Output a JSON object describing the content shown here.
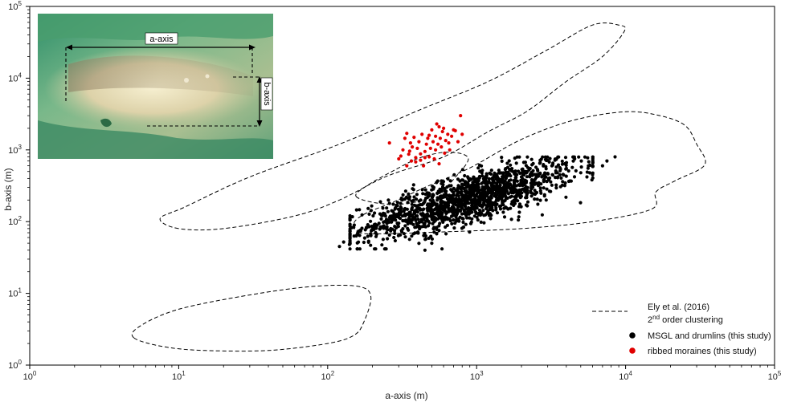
{
  "chart_data": {
    "type": "scatter",
    "xlabel": "a-axis (m)",
    "ylabel": "b-axis (m)",
    "xscale": "log",
    "yscale": "log",
    "xlim": [
      1,
      100000
    ],
    "ylim": [
      1,
      100000
    ],
    "grid": false,
    "legend_position": "bottom-right",
    "x_ticks": [
      {
        "base": "10",
        "exp": "0"
      },
      {
        "base": "10",
        "exp": "1"
      },
      {
        "base": "10",
        "exp": "2"
      },
      {
        "base": "10",
        "exp": "3"
      },
      {
        "base": "10",
        "exp": "4"
      },
      {
        "base": "10",
        "exp": "5"
      }
    ],
    "y_ticks": [
      {
        "base": "10",
        "exp": "0"
      },
      {
        "base": "10",
        "exp": "1"
      },
      {
        "base": "10",
        "exp": "2"
      },
      {
        "base": "10",
        "exp": "3"
      },
      {
        "base": "10",
        "exp": "4"
      },
      {
        "base": "10",
        "exp": "5"
      }
    ],
    "legend": [
      {
        "type": "dashed-line",
        "line1": "Ely et al. (2016)",
        "line2_pre": "2",
        "line2_sup": "nd",
        "line2_post": " order clustering"
      },
      {
        "type": "marker",
        "color": "#000000",
        "label": "MSGL and drumlins (this study)"
      },
      {
        "type": "marker",
        "color": "#e00000",
        "label": "ribbed moraines (this study)"
      }
    ],
    "envelopes": [
      {
        "name": "envelope-large",
        "points": [
          [
            10,
            80
          ],
          [
            7.5,
            110
          ],
          [
            11,
            160
          ],
          [
            30,
            420
          ],
          [
            120,
            1200
          ],
          [
            400,
            3500
          ],
          [
            1200,
            9000
          ],
          [
            3000,
            25000
          ],
          [
            6000,
            55000
          ],
          [
            9000,
            55000
          ],
          [
            9800,
            45000
          ],
          [
            7000,
            20000
          ],
          [
            4000,
            9000
          ],
          [
            2200,
            3500
          ],
          [
            1200,
            1800
          ],
          [
            600,
            800
          ],
          [
            250,
            430
          ],
          [
            120,
            200
          ],
          [
            60,
            120
          ],
          [
            20,
            80
          ]
        ]
      },
      {
        "name": "envelope-medium",
        "points": [
          [
            165,
            70
          ],
          [
            150,
            95
          ],
          [
            180,
            130
          ],
          [
            280,
            190
          ],
          [
            450,
            300
          ],
          [
            900,
            560
          ],
          [
            2000,
            1400
          ],
          [
            4500,
            2600
          ],
          [
            10000,
            3400
          ],
          [
            17000,
            3000
          ],
          [
            25000,
            2200
          ],
          [
            30000,
            1200
          ],
          [
            34000,
            620
          ],
          [
            22000,
            380
          ],
          [
            16000,
            260
          ],
          [
            15000,
            150
          ],
          [
            6000,
            100
          ],
          [
            2000,
            80
          ],
          [
            600,
            72
          ],
          [
            250,
            68
          ]
        ]
      },
      {
        "name": "envelope-small",
        "points": [
          [
            155,
            225
          ],
          [
            220,
            180
          ],
          [
            350,
            180
          ],
          [
            550,
            240
          ],
          [
            700,
            390
          ],
          [
            880,
            760
          ],
          [
            650,
            930
          ],
          [
            420,
            780
          ],
          [
            280,
            520
          ],
          [
            185,
            320
          ]
        ]
      },
      {
        "name": "envelope-tiny",
        "points": [
          [
            5,
            2.4
          ],
          [
            5.5,
            3.5
          ],
          [
            10,
            6
          ],
          [
            30,
            9.5
          ],
          [
            80,
            12.5
          ],
          [
            160,
            12.5
          ],
          [
            195,
            9
          ],
          [
            175,
            4
          ],
          [
            150,
            2.6
          ],
          [
            100,
            2
          ],
          [
            40,
            1.6
          ],
          [
            15,
            1.6
          ],
          [
            8,
            1.8
          ]
        ]
      }
    ],
    "series": [
      {
        "name": "MSGL and drumlins (this study)",
        "color": "#000000",
        "generated_count": 1500,
        "points_sample": [
          [
            120,
            45
          ],
          [
            128,
            52
          ],
          [
            140,
            48
          ],
          [
            190,
            85
          ],
          [
            210,
            70
          ],
          [
            260,
            65
          ],
          [
            300,
            95
          ],
          [
            350,
            110
          ],
          [
            400,
            150
          ],
          [
            500,
            170
          ],
          [
            600,
            220
          ],
          [
            700,
            250
          ],
          [
            800,
            300
          ],
          [
            900,
            280
          ],
          [
            1000,
            320
          ],
          [
            1200,
            350
          ],
          [
            1500,
            380
          ],
          [
            2000,
            420
          ],
          [
            2500,
            450
          ],
          [
            3000,
            470
          ],
          [
            3500,
            420
          ],
          [
            4000,
            430
          ],
          [
            5000,
            480
          ],
          [
            5500,
            420
          ],
          [
            6000,
            450
          ],
          [
            7000,
            600
          ],
          [
            7500,
            700
          ],
          [
            8500,
            800
          ],
          [
            450,
            40
          ],
          [
            500,
            50
          ],
          [
            1100,
            200
          ],
          [
            1800,
            190
          ],
          [
            2200,
            250
          ],
          [
            3200,
            600
          ],
          [
            750,
            160
          ]
        ]
      },
      {
        "name": "ribbed moraines (this study)",
        "color": "#e00000",
        "points": [
          [
            260,
            1250
          ],
          [
            300,
            750
          ],
          [
            310,
            820
          ],
          [
            320,
            1000
          ],
          [
            330,
            1450
          ],
          [
            340,
            1700
          ],
          [
            350,
            870
          ],
          [
            355,
            960
          ],
          [
            360,
            1250
          ],
          [
            365,
            700
          ],
          [
            370,
            1100
          ],
          [
            380,
            1500
          ],
          [
            390,
            780
          ],
          [
            400,
            1050
          ],
          [
            410,
            1300
          ],
          [
            420,
            880
          ],
          [
            430,
            1650
          ],
          [
            440,
            600
          ],
          [
            450,
            950
          ],
          [
            460,
            1200
          ],
          [
            470,
            1450
          ],
          [
            480,
            800
          ],
          [
            490,
            1050
          ],
          [
            500,
            1900
          ],
          [
            510,
            1300
          ],
          [
            520,
            750
          ],
          [
            530,
            1000
          ],
          [
            540,
            2300
          ],
          [
            550,
            1200
          ],
          [
            560,
            640
          ],
          [
            570,
            1450
          ],
          [
            580,
            1100
          ],
          [
            590,
            1800
          ],
          [
            600,
            2000
          ],
          [
            610,
            900
          ],
          [
            620,
            1350
          ],
          [
            640,
            1650
          ],
          [
            650,
            1250
          ],
          [
            660,
            1000
          ],
          [
            680,
            1550
          ],
          [
            700,
            1900
          ],
          [
            720,
            1850
          ],
          [
            750,
            1300
          ],
          [
            780,
            3000
          ],
          [
            800,
            1650
          ],
          [
            340,
            600
          ],
          [
            390,
            680
          ],
          [
            420,
            720
          ],
          [
            450,
            780
          ],
          [
            530,
            1550
          ],
          [
            560,
            2100
          ],
          [
            480,
            1600
          ]
        ]
      }
    ],
    "inset": {
      "label_a": "a-axis",
      "label_b": "b-axis"
    }
  }
}
